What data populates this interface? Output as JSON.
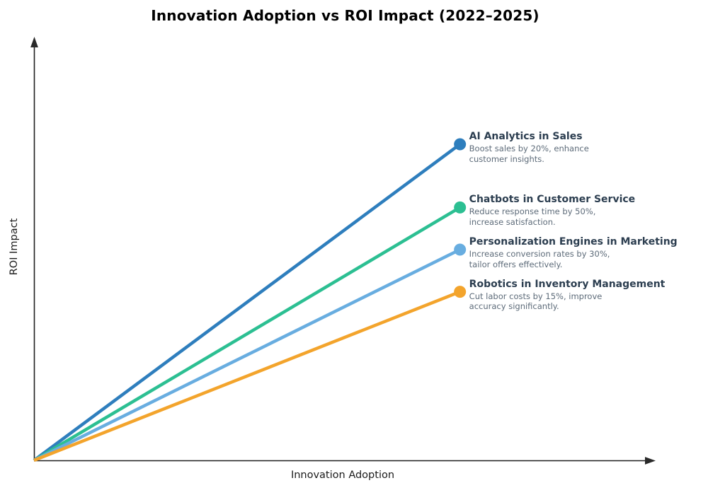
{
  "page": {
    "background_color": "#ffffff"
  },
  "chart_data": {
    "type": "line",
    "title": "Innovation Adoption vs ROI Impact (2022–2025)",
    "xlabel": "Innovation Adoption",
    "ylabel": "ROI Impact",
    "x_range": [
      0,
      1
    ],
    "y_range": [
      0,
      1
    ],
    "grid": false,
    "legend_position": "none",
    "axis_style": "bare arrow axes without ticks or tick labels",
    "axis_color": "#1f1f1f",
    "title_color": "#000000",
    "annotation_title_color": "#2c3e50",
    "annotation_desc_color": "#5d6b79",
    "series": [
      {
        "name": "AI Analytics in Sales",
        "description": "Boost sales by 20%, enhance\ncustomer insights.",
        "color": "#2e7ebd",
        "x": [
          0,
          0.69
        ],
        "y": [
          0,
          0.75
        ]
      },
      {
        "name": "Chatbots in Customer Service",
        "description": "Reduce response time by 50%,\nincrease satisfaction.",
        "color": "#2cbf92",
        "x": [
          0,
          0.69
        ],
        "y": [
          0,
          0.6
        ]
      },
      {
        "name": "Personalization Engines in Marketing",
        "description": "Increase conversion rates by 30%,\ntailor offers effectively.",
        "color": "#68ade0",
        "x": [
          0,
          0.69
        ],
        "y": [
          0,
          0.5
        ]
      },
      {
        "name": "Robotics in Inventory Management",
        "description": "Cut labor costs by 15%, improve\naccuracy significantly.",
        "color": "#f3a42c",
        "x": [
          0,
          0.69
        ],
        "y": [
          0,
          0.4
        ]
      }
    ]
  }
}
